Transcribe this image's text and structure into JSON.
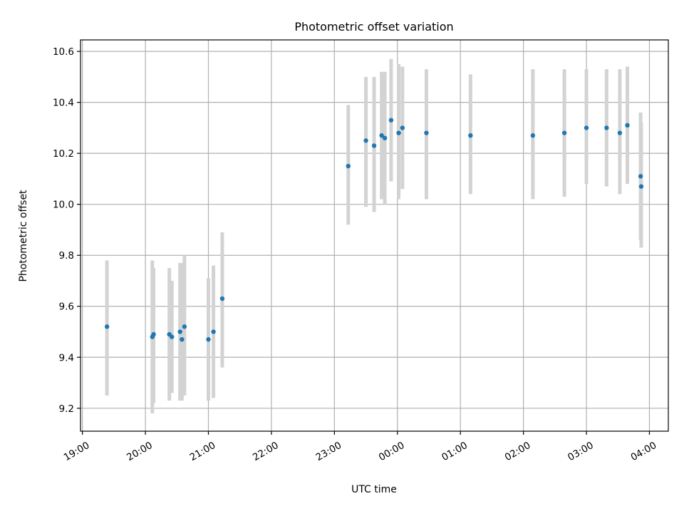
{
  "chart_data": {
    "type": "scatter",
    "title": "Photometric offset variation",
    "xlabel": "UTC time",
    "ylabel": "Photometric offset",
    "x_unit": "hours",
    "xlim": [
      18.97,
      28.3
    ],
    "ylim": [
      9.11,
      10.645
    ],
    "grid": true,
    "x_ticks": [
      {
        "value": 19,
        "label": "19:00"
      },
      {
        "value": 20,
        "label": "20:00"
      },
      {
        "value": 21,
        "label": "21:00"
      },
      {
        "value": 22,
        "label": "22:00"
      },
      {
        "value": 23,
        "label": "23:00"
      },
      {
        "value": 24,
        "label": "00:00"
      },
      {
        "value": 25,
        "label": "01:00"
      },
      {
        "value": 26,
        "label": "02:00"
      },
      {
        "value": 27,
        "label": "03:00"
      },
      {
        "value": 28,
        "label": "04:00"
      }
    ],
    "y_ticks": [
      {
        "value": 9.2,
        "label": "9.2"
      },
      {
        "value": 9.4,
        "label": "9.4"
      },
      {
        "value": 9.6,
        "label": "9.6"
      },
      {
        "value": 9.8,
        "label": "9.8"
      },
      {
        "value": 10.0,
        "label": "10.0"
      },
      {
        "value": 10.2,
        "label": "10.2"
      },
      {
        "value": 10.4,
        "label": "10.4"
      },
      {
        "value": 10.6,
        "label": "10.6"
      }
    ],
    "colors": {
      "points": "#1f77b4",
      "error_bars": "#d3d3d3",
      "grid": "#b0b0b0"
    },
    "points": [
      {
        "x": 19.39,
        "y": 9.52,
        "lo": 9.25,
        "hi": 9.78
      },
      {
        "x": 20.11,
        "y": 9.48,
        "lo": 9.18,
        "hi": 9.78
      },
      {
        "x": 20.13,
        "y": 9.49,
        "lo": 9.22,
        "hi": 9.75
      },
      {
        "x": 20.38,
        "y": 9.49,
        "lo": 9.23,
        "hi": 9.75
      },
      {
        "x": 20.42,
        "y": 9.48,
        "lo": 9.26,
        "hi": 9.7
      },
      {
        "x": 20.55,
        "y": 9.5,
        "lo": 9.23,
        "hi": 9.77
      },
      {
        "x": 20.58,
        "y": 9.47,
        "lo": 9.23,
        "hi": 9.77
      },
      {
        "x": 20.62,
        "y": 9.52,
        "lo": 9.25,
        "hi": 9.8
      },
      {
        "x": 21.0,
        "y": 9.47,
        "lo": 9.23,
        "hi": 9.71
      },
      {
        "x": 21.08,
        "y": 9.5,
        "lo": 9.24,
        "hi": 9.76
      },
      {
        "x": 21.22,
        "y": 9.63,
        "lo": 9.36,
        "hi": 9.89
      },
      {
        "x": 23.22,
        "y": 10.15,
        "lo": 9.92,
        "hi": 10.39
      },
      {
        "x": 23.5,
        "y": 10.25,
        "lo": 9.99,
        "hi": 10.5
      },
      {
        "x": 23.63,
        "y": 10.23,
        "lo": 9.97,
        "hi": 10.5
      },
      {
        "x": 23.75,
        "y": 10.27,
        "lo": 10.02,
        "hi": 10.52
      },
      {
        "x": 23.8,
        "y": 10.26,
        "lo": 10.0,
        "hi": 10.52
      },
      {
        "x": 23.9,
        "y": 10.33,
        "lo": 10.09,
        "hi": 10.57
      },
      {
        "x": 24.02,
        "y": 10.28,
        "lo": 10.02,
        "hi": 10.55
      },
      {
        "x": 24.08,
        "y": 10.3,
        "lo": 10.06,
        "hi": 10.54
      },
      {
        "x": 24.46,
        "y": 10.28,
        "lo": 10.02,
        "hi": 10.53
      },
      {
        "x": 25.16,
        "y": 10.27,
        "lo": 10.04,
        "hi": 10.51
      },
      {
        "x": 26.15,
        "y": 10.27,
        "lo": 10.02,
        "hi": 10.53
      },
      {
        "x": 26.65,
        "y": 10.28,
        "lo": 10.03,
        "hi": 10.53
      },
      {
        "x": 27.0,
        "y": 10.3,
        "lo": 10.08,
        "hi": 10.53
      },
      {
        "x": 27.32,
        "y": 10.3,
        "lo": 10.07,
        "hi": 10.53
      },
      {
        "x": 27.53,
        "y": 10.28,
        "lo": 10.04,
        "hi": 10.53
      },
      {
        "x": 27.65,
        "y": 10.31,
        "lo": 10.08,
        "hi": 10.54
      },
      {
        "x": 27.86,
        "y": 10.11,
        "lo": 9.86,
        "hi": 10.36
      },
      {
        "x": 27.87,
        "y": 10.07,
        "lo": 9.83,
        "hi": 10.32
      }
    ]
  }
}
